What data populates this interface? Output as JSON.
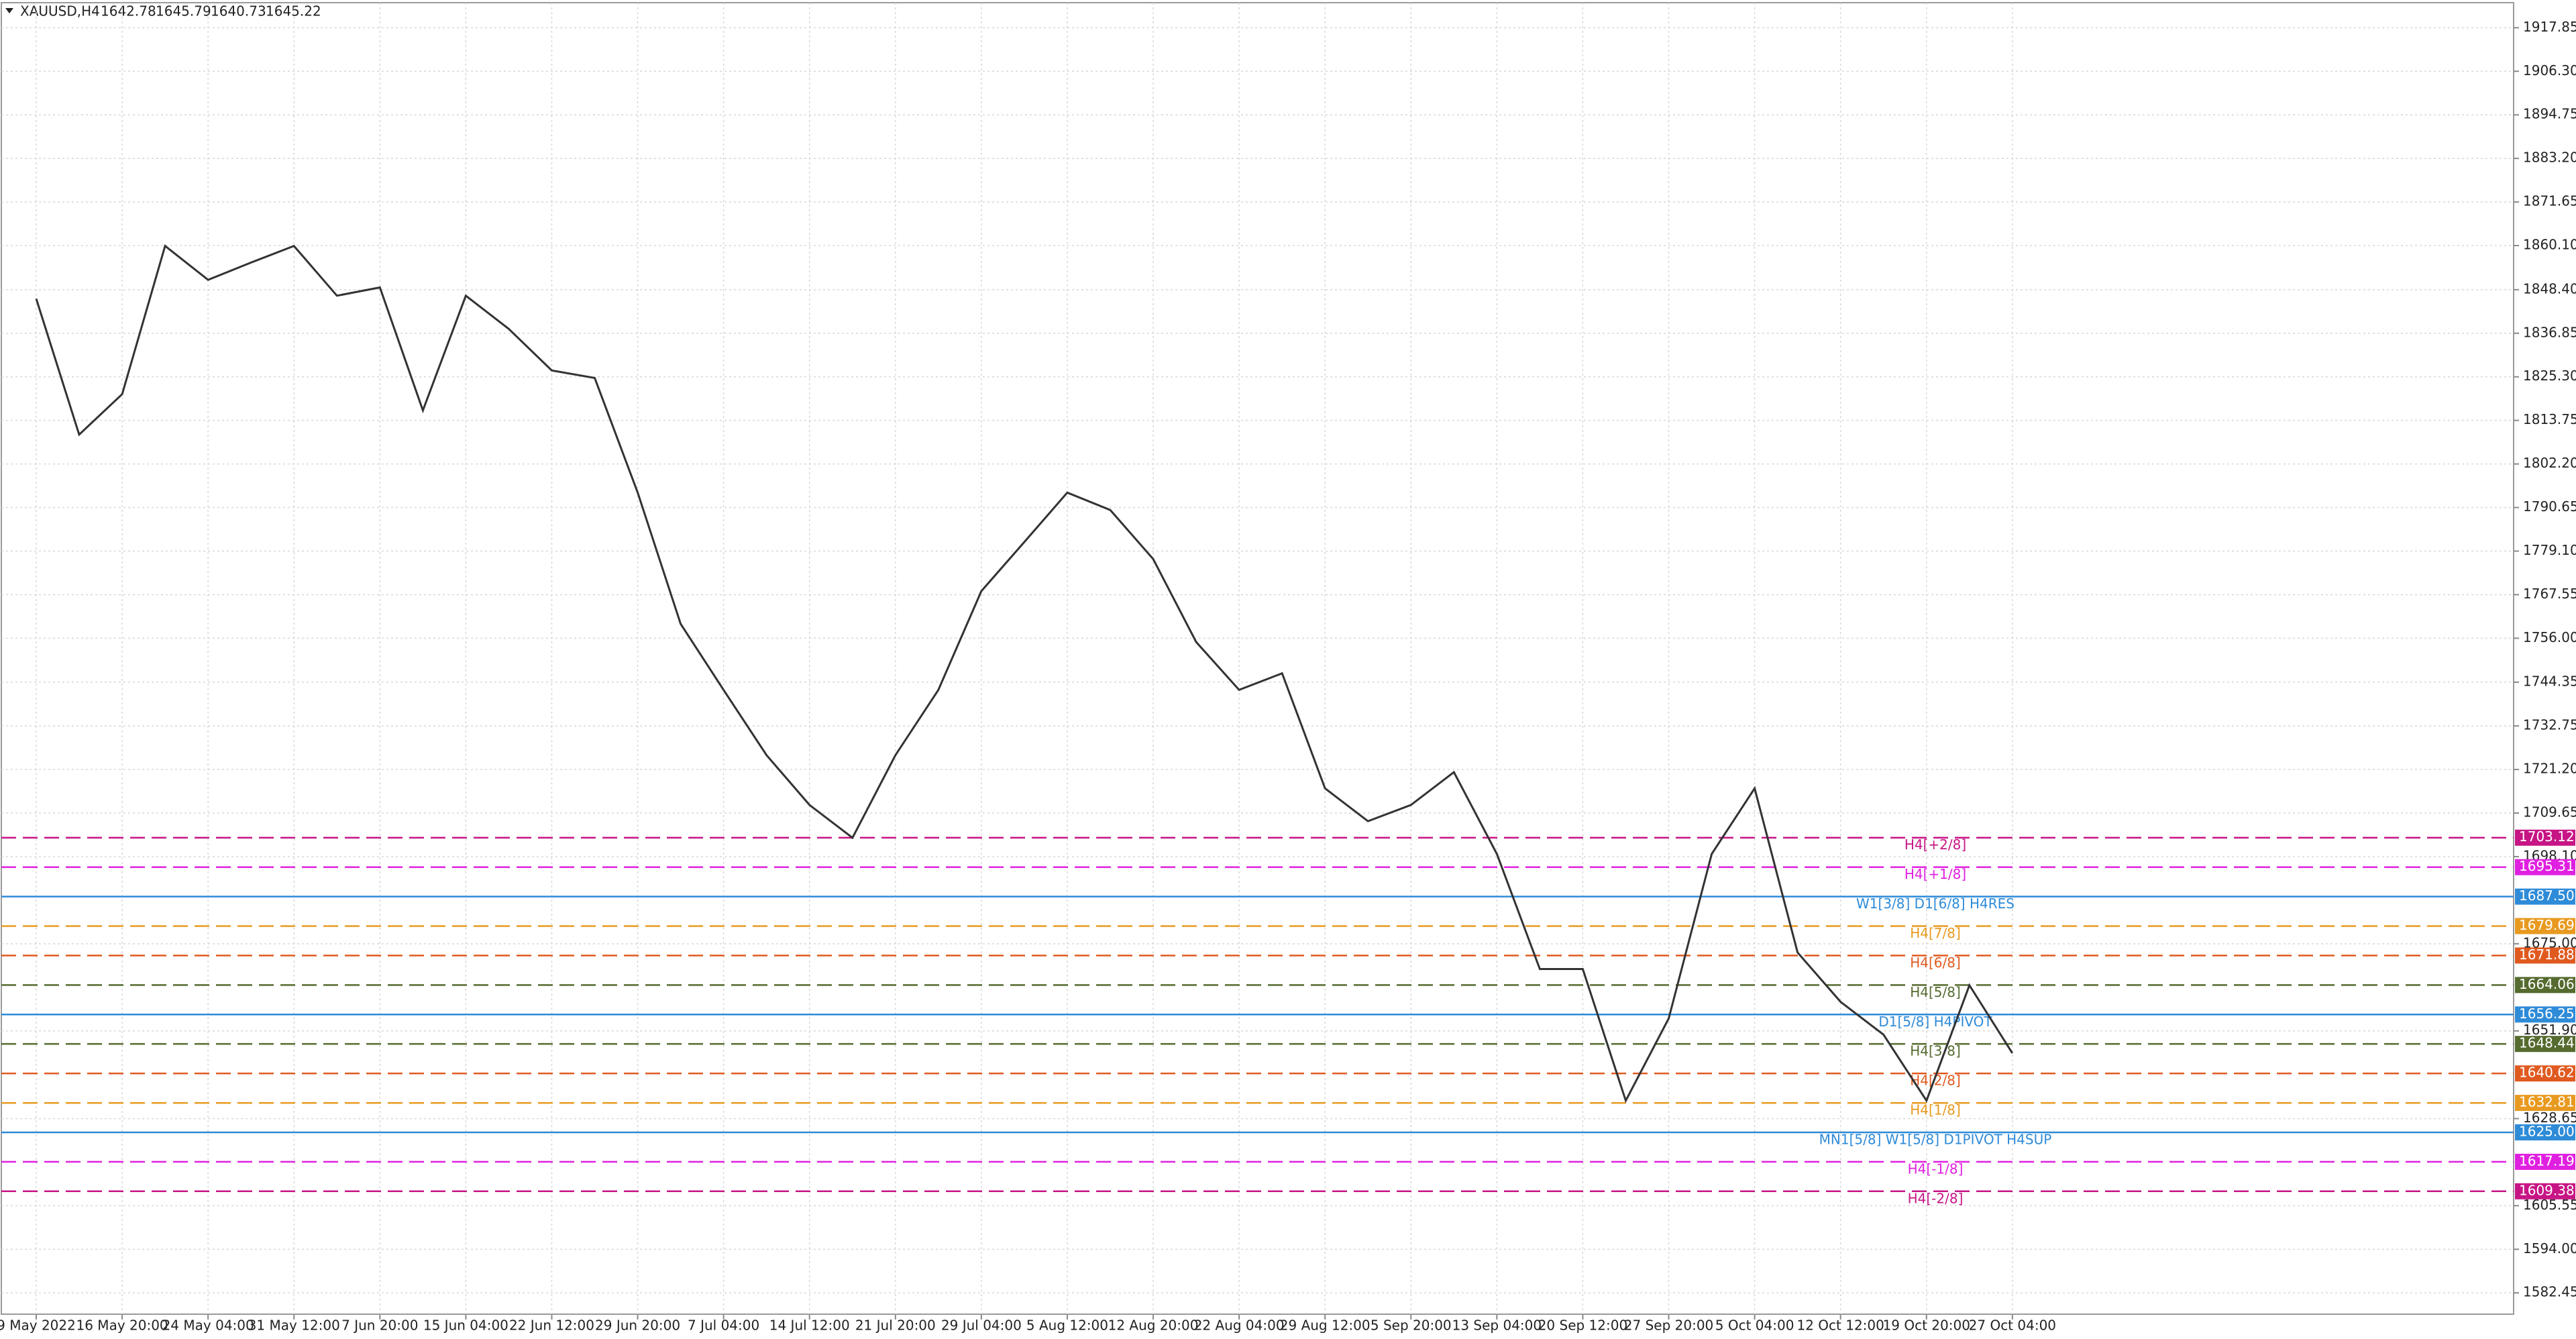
{
  "chart_data": {
    "type": "line",
    "symbol": "XAUUSD,H4",
    "quote": [
      1642.78,
      1645.79,
      1640.73,
      1645.22
    ],
    "categories": [
      "9 May 2022",
      null,
      "16 May 20:00",
      null,
      "24 May 04:00",
      null,
      "31 May 12:00",
      null,
      "7 Jun 20:00",
      null,
      "15 Jun 04:00",
      null,
      "22 Jun 12:00",
      null,
      "29 Jun 20:00",
      null,
      "7 Jul 04:00",
      null,
      "14 Jul 12:00",
      null,
      "21 Jul 20:00",
      null,
      "29 Jul 04:00",
      null,
      "5 Aug 12:00",
      null,
      "12 Aug 20:00",
      null,
      "22 Aug 04:00",
      null,
      "29 Aug 12:00",
      null,
      "5 Sep 20:00",
      null,
      "13 Sep 04:00",
      null,
      "20 Sep 12:00",
      null,
      "27 Sep 20:00",
      null,
      "5 Oct 04:00",
      null,
      "12 Oct 12:00",
      null,
      "19 Oct 20:00",
      null,
      "27 Oct 04:00"
    ],
    "values": [
      1846,
      1810,
      1820.7,
      1860,
      1851,
      1855.6,
      1860,
      1846.8,
      1849,
      1816.4,
      1846.8,
      1838,
      1827,
      1825,
      1794.6,
      1759.8,
      1742.3,
      1725,
      1711.8,
      1703.1,
      1725,
      1742.3,
      1768.5,
      1781.5,
      1794.6,
      1790,
      1777,
      1755,
      1742.3,
      1746.7,
      1716.2,
      1707.5,
      1711.8,
      1720.5,
      1698.8,
      1668.3,
      1668.3,
      1633.4,
      1655.2,
      1698.8,
      1716.2,
      1672.7,
      1659.6,
      1650.9,
      1633.4,
      1664,
      1646
    ],
    "color": "#333333",
    "ylim": [
      1576.8,
      1925.2
    ],
    "yticks": [
      1917.85,
      {
        "value": 1906.3,
        "label": "1906.30"
      },
      1894.75,
      {
        "value": 1883.2,
        "label": "1883.20"
      },
      1871.65,
      {
        "value": 1860.1,
        "label": "1860.10"
      },
      {
        "value": 1848.4,
        "label": "1848.40"
      },
      1836.85,
      {
        "value": 1825.3,
        "label": "1825.30"
      },
      1813.75,
      {
        "value": 1802.2,
        "label": "1802.20"
      },
      1790.65,
      {
        "value": 1779.1,
        "label": "1779.10"
      },
      1767.55,
      {
        "value": 1756,
        "label": "1756.00"
      },
      1744.35,
      1732.75,
      {
        "value": 1721.2,
        "label": "1721.20"
      },
      1709.65,
      {
        "value": 1698.1,
        "label": "1698.10"
      },
      {
        "value": 1675,
        "label": "1675.00"
      },
      {
        "value": 1651.9,
        "label": "1651.90"
      },
      1628.65,
      1605.55,
      {
        "value": 1594,
        "label": "1594.00"
      },
      1582.45
    ],
    "grid": true,
    "levels": [
      {
        "label": "H4[+2/8]",
        "value": 1703.12,
        "color": "#c71585",
        "style": "dashed"
      },
      {
        "label": "H4[+1/8]",
        "value": 1695.31,
        "color": "#e020e0",
        "style": "dashed"
      },
      {
        "label": "W1[3/8] D1[6/8] H4RES",
        "value": 1687.5,
        "value_label": "1687.50",
        "color": "#2e8bd8",
        "style": "solid"
      },
      {
        "label": "H4[7/8]",
        "value": 1679.69,
        "color": "#e89a20",
        "style": "dashed"
      },
      {
        "label": "H4[6/8]",
        "value": 1671.88,
        "color": "#e05a20",
        "style": "dashed"
      },
      {
        "label": "H4[5/8]",
        "value": 1664.06,
        "color": "#556b2f",
        "style": "dashed"
      },
      {
        "label": "D1[5/8] H4PIVOT",
        "value": 1656.25,
        "color": "#2e8bd8",
        "style": "solid"
      },
      {
        "label": "H4[3/8]",
        "value": 1648.44,
        "color": "#556b2f",
        "style": "dashed"
      },
      {
        "label": "H4[2/8]",
        "value": 1640.62,
        "color": "#e05a20",
        "style": "dashed"
      },
      {
        "label": "H4[1/8]",
        "value": 1632.81,
        "color": "#e89a20",
        "style": "dashed"
      },
      {
        "label": "MN1[5/8] W1[5/8] D1PIVOT H4SUP",
        "value": 1625,
        "value_label": "1625.00",
        "color": "#2e8bd8",
        "style": "solid"
      },
      {
        "label": "H4[-1/8]",
        "value": 1617.19,
        "color": "#e020e0",
        "style": "dashed"
      },
      {
        "label": "H4[-2/8]",
        "value": 1609.38,
        "color": "#c71585",
        "style": "dashed"
      }
    ]
  }
}
